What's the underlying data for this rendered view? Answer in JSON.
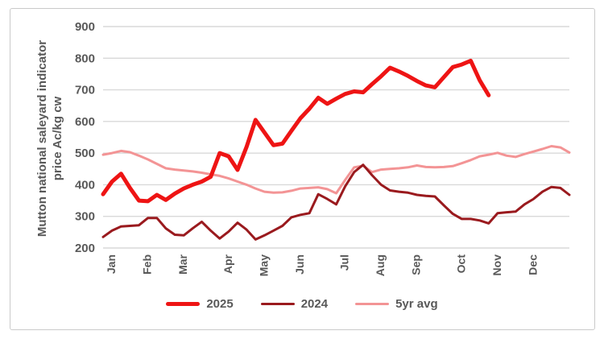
{
  "figure": {
    "y_axis_title_line1": "Mutton national saleyard indicator",
    "y_axis_title_line2": "price Ac/kg cw"
  },
  "chart_data": {
    "type": "line",
    "title": "",
    "ylabel": "Mutton national saleyard indicator price Ac/kg cw",
    "xlabel": "",
    "ylim": [
      200,
      900
    ],
    "y_ticks": [
      200,
      300,
      400,
      500,
      600,
      700,
      800,
      900
    ],
    "grid": "horizontal",
    "legend_position": "bottom",
    "text_color": "#595959",
    "grid_color": "#d9d9d9",
    "weeks": 53,
    "x_unit": "week of year",
    "months": [
      {
        "label": "Jan",
        "start_week": 0
      },
      {
        "label": "Feb",
        "start_week": 4
      },
      {
        "label": "Mar",
        "start_week": 8
      },
      {
        "label": "Apr",
        "start_week": 13
      },
      {
        "label": "May",
        "start_week": 17
      },
      {
        "label": "Jun",
        "start_week": 21
      },
      {
        "label": "Jul",
        "start_week": 26
      },
      {
        "label": "Aug",
        "start_week": 30
      },
      {
        "label": "Sep",
        "start_week": 34
      },
      {
        "label": "Oct",
        "start_week": 39
      },
      {
        "label": "Nov",
        "start_week": 43
      },
      {
        "label": "Dec",
        "start_week": 47
      }
    ],
    "series": [
      {
        "name": "2025",
        "color": "#ee1414",
        "width": 5,
        "values": [
          370,
          410,
          435,
          390,
          350,
          348,
          368,
          352,
          372,
          388,
          400,
          410,
          425,
          500,
          490,
          447,
          520,
          605,
          565,
          525,
          530,
          570,
          610,
          640,
          675,
          656,
          672,
          687,
          695,
          692,
          718,
          743,
          770,
          758,
          744,
          728,
          714,
          708,
          740,
          772,
          780,
          792,
          730,
          683
        ]
      },
      {
        "name": "2024",
        "color": "#9a1a1e",
        "width": 3,
        "values": [
          235,
          255,
          268,
          270,
          272,
          295,
          295,
          262,
          242,
          240,
          262,
          283,
          255,
          230,
          252,
          280,
          258,
          227,
          240,
          255,
          270,
          297,
          305,
          310,
          370,
          355,
          338,
          395,
          440,
          463,
          430,
          400,
          382,
          378,
          375,
          368,
          365,
          363,
          335,
          308,
          292,
          292,
          287,
          278,
          310,
          313,
          315,
          338,
          355,
          378,
          393,
          390,
          368
        ]
      },
      {
        "name": "5yr avg",
        "color": "#f39495",
        "width": 3,
        "values": [
          495,
          500,
          507,
          503,
          492,
          480,
          466,
          452,
          448,
          445,
          442,
          438,
          433,
          428,
          420,
          410,
          400,
          388,
          378,
          375,
          376,
          381,
          388,
          390,
          392,
          386,
          373,
          415,
          455,
          460,
          440,
          448,
          450,
          452,
          455,
          461,
          456,
          455,
          456,
          459,
          468,
          478,
          490,
          495,
          501,
          492,
          488,
          497,
          505,
          513,
          522,
          518,
          502
        ]
      }
    ]
  }
}
